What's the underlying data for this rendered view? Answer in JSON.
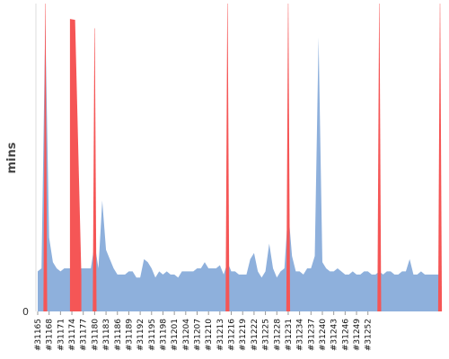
{
  "chart_data": {
    "type": "area",
    "title": "",
    "xlabel": "",
    "ylabel": "mins",
    "y_ticks": [
      "0"
    ],
    "ylim": [
      0,
      100
    ],
    "grid": false,
    "legend": "none",
    "first_build": 31165,
    "x_tick_labels": [
      "#31165",
      "#31168",
      "#31171",
      "#31174",
      "#31177",
      "#31180",
      "#31183",
      "#31186",
      "#31189",
      "#31192",
      "#31195",
      "#31198",
      "#31201",
      "#31204",
      "#31207",
      "#31210",
      "#31213",
      "#31216",
      "#31219",
      "#31222",
      "#31225",
      "#31228",
      "#31231",
      "#31234",
      "#31237",
      "#31240",
      "#31243",
      "#31246",
      "#31249",
      "#31252"
    ],
    "series": [
      {
        "color": "#8eb0dc",
        "values": [
          13,
          14,
          94,
          24,
          16,
          14,
          13,
          14,
          14,
          14,
          14,
          14,
          14,
          14,
          14,
          22,
          14,
          36,
          20,
          17,
          14,
          12,
          12,
          12,
          13,
          13,
          11,
          11,
          17,
          16,
          14,
          11,
          13,
          12,
          13,
          12,
          12,
          11,
          13,
          13,
          13,
          13,
          14,
          14,
          16,
          14,
          14,
          14,
          15,
          12,
          16,
          13,
          13,
          12,
          12,
          12,
          17,
          19,
          13,
          11,
          13,
          22,
          14,
          11,
          13,
          14,
          33,
          18,
          13,
          13,
          12,
          14,
          14,
          18,
          89,
          16,
          14,
          13,
          13,
          14,
          13,
          12,
          12,
          13,
          12,
          12,
          13,
          13,
          12,
          12,
          13,
          12,
          13,
          13,
          12,
          12,
          13,
          13,
          17,
          12,
          12,
          13,
          12,
          12,
          12,
          12,
          12
        ]
      },
      {
        "color": "#f55656",
        "values": [
          0,
          0,
          0,
          0,
          0,
          0,
          0,
          0,
          0,
          0,
          0,
          0,
          0,
          0,
          0,
          0,
          0,
          0,
          0,
          0,
          0,
          0,
          0,
          0,
          0,
          0,
          0,
          0,
          0,
          0,
          0,
          0,
          0,
          0,
          0,
          0,
          0,
          0,
          0,
          0,
          0,
          0,
          0,
          0,
          0,
          0,
          0,
          0,
          0,
          0,
          0,
          0,
          0,
          0,
          0,
          0,
          0,
          0,
          0,
          0,
          0,
          0,
          0,
          0,
          0,
          0,
          0,
          0,
          0,
          0,
          0,
          0,
          0,
          0,
          0,
          0,
          0,
          0,
          0,
          0,
          0,
          0,
          0,
          0,
          0,
          0,
          0,
          0,
          0,
          0,
          0,
          0,
          0,
          0,
          0,
          0,
          0,
          0,
          0,
          0,
          0,
          0,
          0,
          0,
          0,
          0,
          0
        ],
        "bands": [
          {
            "build": 31167,
            "width": 1,
            "y": 100
          },
          {
            "build": 31175,
            "width": 3,
            "y": 95
          },
          {
            "build": 31180,
            "width": 1,
            "y": 92
          },
          {
            "build": 31215,
            "width": 1,
            "y": 100
          },
          {
            "build": 31231,
            "width": 1,
            "y": 100
          },
          {
            "build": 31255,
            "width": 1,
            "y": 100
          },
          {
            "build": 31271,
            "width": 1,
            "y": 100
          }
        ]
      }
    ]
  }
}
